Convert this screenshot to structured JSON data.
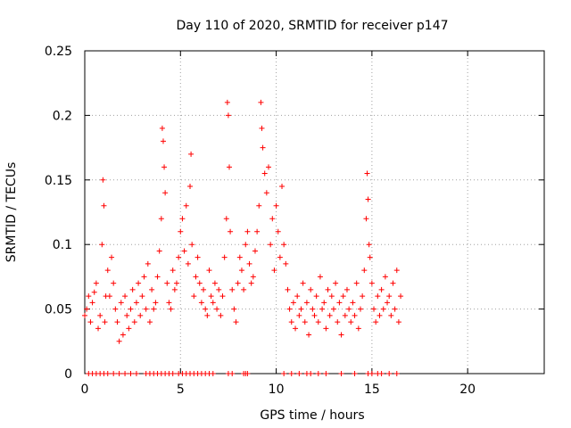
{
  "chart_data": {
    "type": "scatter",
    "title": "Day 110 of 2020, SRMTID for receiver p147",
    "xlabel": "GPS time / hours",
    "ylabel": "SRMTID / TECUs",
    "xlim": [
      0,
      24
    ],
    "ylim": [
      0,
      0.25
    ],
    "grid": true,
    "legend": "none",
    "marker": "+",
    "color": "#ff0000",
    "x_ticks": [
      0,
      5,
      10,
      15,
      20
    ],
    "y_ticks": [
      0,
      0.05,
      0.1,
      0.15,
      0.2,
      0.25
    ],
    "x_tick_labels": [
      "0",
      "5",
      "10",
      "15",
      "20"
    ],
    "y_tick_labels": [
      "0",
      "0.05",
      "0.1",
      "0.15",
      "0.2",
      "0.25"
    ],
    "series": [
      {
        "name": "SRMTID",
        "points": [
          [
            0.0,
            0.045
          ],
          [
            0.1,
            0.05
          ],
          [
            0.2,
            0.06
          ],
          [
            0.3,
            0.04
          ],
          [
            0.4,
            0.055
          ],
          [
            0.5,
            0.063
          ],
          [
            0.6,
            0.07
          ],
          [
            0.7,
            0.035
          ],
          [
            0.8,
            0.045
          ],
          [
            0.9,
            0.1
          ],
          [
            0.95,
            0.15
          ],
          [
            1.0,
            0.13
          ],
          [
            1.05,
            0.04
          ],
          [
            1.1,
            0.06
          ],
          [
            1.2,
            0.08
          ],
          [
            1.3,
            0.06
          ],
          [
            1.4,
            0.09
          ],
          [
            1.5,
            0.07
          ],
          [
            1.6,
            0.05
          ],
          [
            1.7,
            0.04
          ],
          [
            1.8,
            0.025
          ],
          [
            1.9,
            0.055
          ],
          [
            2.0,
            0.03
          ],
          [
            2.1,
            0.06
          ],
          [
            2.2,
            0.045
          ],
          [
            2.3,
            0.035
          ],
          [
            2.4,
            0.05
          ],
          [
            2.5,
            0.065
          ],
          [
            2.6,
            0.04
          ],
          [
            2.7,
            0.055
          ],
          [
            2.8,
            0.07
          ],
          [
            2.9,
            0.045
          ],
          [
            3.0,
            0.06
          ],
          [
            3.1,
            0.075
          ],
          [
            3.2,
            0.05
          ],
          [
            3.3,
            0.085
          ],
          [
            3.4,
            0.04
          ],
          [
            3.5,
            0.065
          ],
          [
            3.6,
            0.05
          ],
          [
            3.7,
            0.055
          ],
          [
            3.8,
            0.075
          ],
          [
            3.9,
            0.095
          ],
          [
            4.0,
            0.12
          ],
          [
            4.05,
            0.19
          ],
          [
            4.1,
            0.18
          ],
          [
            4.15,
            0.16
          ],
          [
            4.2,
            0.14
          ],
          [
            4.3,
            0.07
          ],
          [
            4.4,
            0.055
          ],
          [
            4.5,
            0.05
          ],
          [
            4.6,
            0.08
          ],
          [
            4.7,
            0.065
          ],
          [
            4.8,
            0.07
          ],
          [
            4.9,
            0.09
          ],
          [
            5.0,
            0.11
          ],
          [
            5.1,
            0.12
          ],
          [
            5.2,
            0.095
          ],
          [
            5.3,
            0.13
          ],
          [
            5.4,
            0.085
          ],
          [
            5.5,
            0.145
          ],
          [
            5.55,
            0.17
          ],
          [
            5.6,
            0.1
          ],
          [
            5.7,
            0.06
          ],
          [
            5.8,
            0.075
          ],
          [
            5.9,
            0.09
          ],
          [
            6.0,
            0.07
          ],
          [
            6.1,
            0.055
          ],
          [
            6.2,
            0.065
          ],
          [
            6.3,
            0.05
          ],
          [
            6.4,
            0.045
          ],
          [
            6.5,
            0.08
          ],
          [
            6.6,
            0.06
          ],
          [
            6.7,
            0.055
          ],
          [
            6.8,
            0.07
          ],
          [
            6.9,
            0.05
          ],
          [
            7.0,
            0.065
          ],
          [
            7.1,
            0.045
          ],
          [
            7.2,
            0.06
          ],
          [
            7.3,
            0.09
          ],
          [
            7.4,
            0.12
          ],
          [
            7.45,
            0.21
          ],
          [
            7.5,
            0.2
          ],
          [
            7.55,
            0.16
          ],
          [
            7.6,
            0.11
          ],
          [
            7.7,
            0.065
          ],
          [
            7.8,
            0.05
          ],
          [
            7.9,
            0.04
          ],
          [
            8.0,
            0.07
          ],
          [
            8.1,
            0.09
          ],
          [
            8.2,
            0.08
          ],
          [
            8.3,
            0.065
          ],
          [
            8.4,
            0.1
          ],
          [
            8.5,
            0.11
          ],
          [
            8.6,
            0.085
          ],
          [
            8.7,
            0.07
          ],
          [
            8.8,
            0.075
          ],
          [
            8.9,
            0.095
          ],
          [
            9.0,
            0.11
          ],
          [
            9.1,
            0.13
          ],
          [
            9.2,
            0.21
          ],
          [
            9.25,
            0.19
          ],
          [
            9.3,
            0.175
          ],
          [
            9.4,
            0.155
          ],
          [
            9.5,
            0.14
          ],
          [
            9.6,
            0.16
          ],
          [
            9.7,
            0.1
          ],
          [
            9.8,
            0.12
          ],
          [
            9.9,
            0.08
          ],
          [
            10.0,
            0.13
          ],
          [
            10.1,
            0.11
          ],
          [
            10.2,
            0.09
          ],
          [
            10.3,
            0.145
          ],
          [
            10.4,
            0.1
          ],
          [
            10.5,
            0.085
          ],
          [
            10.6,
            0.065
          ],
          [
            10.7,
            0.05
          ],
          [
            10.8,
            0.04
          ],
          [
            10.9,
            0.055
          ],
          [
            11.0,
            0.035
          ],
          [
            11.1,
            0.06
          ],
          [
            11.2,
            0.045
          ],
          [
            11.3,
            0.05
          ],
          [
            11.4,
            0.07
          ],
          [
            11.5,
            0.04
          ],
          [
            11.6,
            0.055
          ],
          [
            11.7,
            0.03
          ],
          [
            11.8,
            0.065
          ],
          [
            11.9,
            0.05
          ],
          [
            12.0,
            0.045
          ],
          [
            12.1,
            0.06
          ],
          [
            12.2,
            0.04
          ],
          [
            12.3,
            0.075
          ],
          [
            12.4,
            0.05
          ],
          [
            12.5,
            0.055
          ],
          [
            12.6,
            0.035
          ],
          [
            12.7,
            0.065
          ],
          [
            12.8,
            0.045
          ],
          [
            12.9,
            0.06
          ],
          [
            13.0,
            0.05
          ],
          [
            13.1,
            0.07
          ],
          [
            13.2,
            0.04
          ],
          [
            13.3,
            0.055
          ],
          [
            13.4,
            0.03
          ],
          [
            13.5,
            0.06
          ],
          [
            13.6,
            0.045
          ],
          [
            13.7,
            0.065
          ],
          [
            13.8,
            0.05
          ],
          [
            13.9,
            0.04
          ],
          [
            14.0,
            0.055
          ],
          [
            14.1,
            0.045
          ],
          [
            14.2,
            0.07
          ],
          [
            14.3,
            0.035
          ],
          [
            14.4,
            0.05
          ],
          [
            14.5,
            0.06
          ],
          [
            14.6,
            0.08
          ],
          [
            14.7,
            0.12
          ],
          [
            14.75,
            0.155
          ],
          [
            14.8,
            0.135
          ],
          [
            14.85,
            0.1
          ],
          [
            14.9,
            0.09
          ],
          [
            15.0,
            0.07
          ],
          [
            15.1,
            0.05
          ],
          [
            15.2,
            0.04
          ],
          [
            15.3,
            0.06
          ],
          [
            15.4,
            0.045
          ],
          [
            15.5,
            0.065
          ],
          [
            15.6,
            0.05
          ],
          [
            15.7,
            0.075
          ],
          [
            15.8,
            0.055
          ],
          [
            15.9,
            0.06
          ],
          [
            16.0,
            0.045
          ],
          [
            16.1,
            0.07
          ],
          [
            16.2,
            0.05
          ],
          [
            16.3,
            0.08
          ],
          [
            16.4,
            0.04
          ],
          [
            16.5,
            0.06
          ]
        ]
      }
    ],
    "zero_markers_x": [
      0.2,
      0.4,
      0.6,
      0.8,
      1.0,
      1.2,
      1.5,
      1.8,
      2.1,
      2.4,
      2.7,
      3.2,
      3.4,
      3.6,
      3.8,
      4.0,
      4.2,
      4.4,
      4.6,
      4.9,
      5.1,
      5.3,
      5.5,
      5.7,
      5.9,
      6.1,
      6.3,
      6.5,
      6.7,
      7.5,
      7.7,
      8.3,
      8.4,
      8.5,
      10.4,
      10.8,
      11.2,
      11.6,
      11.8,
      12.2,
      12.6,
      13.4,
      14.1,
      14.8,
      15.0,
      15.3,
      15.5,
      15.9,
      16.3
    ]
  }
}
